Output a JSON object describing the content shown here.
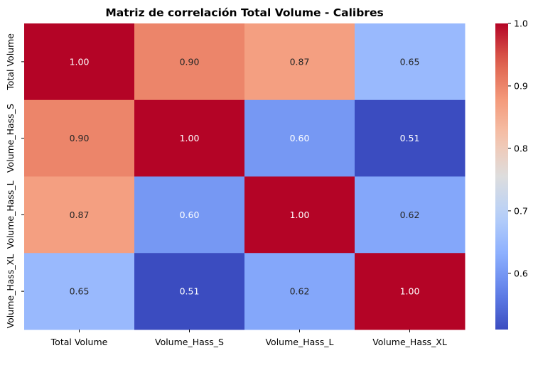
{
  "chart_data": {
    "type": "heatmap",
    "title": "Matriz de correlación Total Volume - Calibres",
    "x_categories": [
      "Total Volume",
      "Volume_Hass_S",
      "Volume_Hass_L",
      "Volume_Hass_XL"
    ],
    "y_categories": [
      "Total Volume",
      "Volume_Hass_S",
      "Volume_Hass_L",
      "Volume_Hass_XL"
    ],
    "values": [
      [
        1.0,
        0.9,
        0.87,
        0.65
      ],
      [
        0.9,
        1.0,
        0.6,
        0.51
      ],
      [
        0.87,
        0.6,
        1.0,
        0.62
      ],
      [
        0.65,
        0.51,
        0.62,
        1.0
      ]
    ],
    "annotation_format": "0.00",
    "colormap": "coolwarm",
    "vmin": 0.51,
    "vmax": 1.0,
    "colorbar_ticks": [
      "0.6",
      "0.7",
      "0.8",
      "0.9",
      "1.0"
    ]
  }
}
